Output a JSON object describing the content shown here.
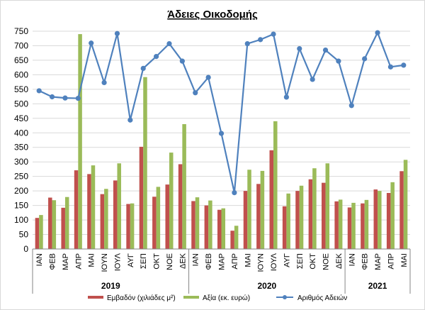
{
  "chart_data": {
    "type": "bar",
    "title": "Άδειες Οικοδομής",
    "ylim": [
      0,
      750
    ],
    "yticks": [
      0,
      50,
      100,
      150,
      200,
      250,
      300,
      350,
      400,
      450,
      500,
      550,
      600,
      650,
      700,
      750
    ],
    "categories": [
      "ΙΑΝ",
      "ΦΕΒ",
      "ΜΑΡ",
      "ΑΠΡ",
      "ΜΑΙ",
      "ΙΟΥΝ",
      "ΙΟΥΛ",
      "ΑΥΓ",
      "ΣΕΠ",
      "ΟΚΤ",
      "ΝΟΕ",
      "ΔΕΚ",
      "ΙΑΝ",
      "ΦΕΒ",
      "ΜΑΡ",
      "ΑΠΡ",
      "ΜΑΙ",
      "ΙΟΥΝ",
      "ΙΟΥΛ",
      "ΑΥΓ",
      "ΣΕΠ",
      "ΟΚΤ",
      "ΝΟΕ",
      "ΔΕΚ",
      "ΙΑΝ",
      "ΦΕΒ",
      "ΜΑΡ",
      "ΑΠΡ",
      "ΜΑΙ"
    ],
    "groups": [
      {
        "label": "2019",
        "count": 12
      },
      {
        "label": "2020",
        "count": 12
      },
      {
        "label": "2021",
        "count": 5
      }
    ],
    "grid": true,
    "legend_position": "bottom",
    "series": [
      {
        "name": "Εμβαδόν (χιλιάδες μ²)",
        "kind": "bar",
        "color": "#c0504d",
        "values": [
          107,
          177,
          142,
          271,
          258,
          189,
          236,
          155,
          352,
          180,
          222,
          292,
          165,
          150,
          135,
          63,
          200,
          224,
          340,
          147,
          200,
          240,
          228,
          164,
          143,
          157,
          205,
          193,
          268
        ]
      },
      {
        "name": "Αξία (εκ. ευρώ)",
        "kind": "bar",
        "color": "#9bbb59",
        "values": [
          117,
          168,
          179,
          740,
          288,
          207,
          295,
          157,
          592,
          214,
          332,
          430,
          178,
          167,
          140,
          80,
          273,
          269,
          440,
          191,
          218,
          278,
          295,
          170,
          159,
          169,
          200,
          230,
          307
        ]
      },
      {
        "name": "Αριθμός Αδειών",
        "kind": "line",
        "color": "#4f81bd",
        "values": [
          545,
          524,
          520,
          519,
          709,
          573,
          742,
          444,
          622,
          663,
          707,
          647,
          538,
          591,
          398,
          194,
          707,
          721,
          740,
          523,
          690,
          584,
          685,
          647,
          494,
          655,
          745,
          627,
          633
        ]
      }
    ]
  }
}
